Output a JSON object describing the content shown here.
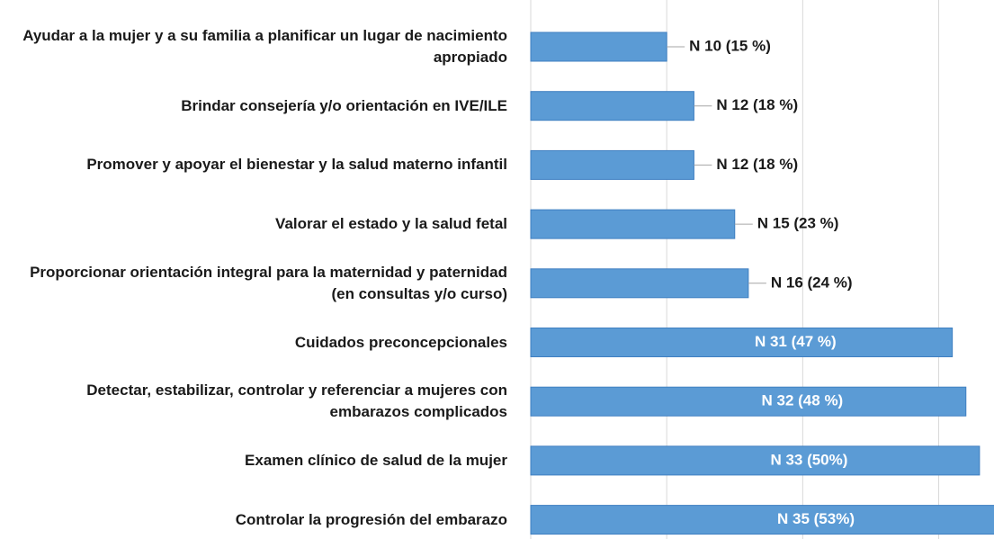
{
  "chart_data": {
    "type": "bar",
    "orientation": "horizontal",
    "categories": [
      "Ayudar a la mujer y a su familia a planificar un lugar de nacimiento apropiado",
      "Brindar consejería y/o orientación en IVE/ILE",
      "Promover y apoyar el bienestar y la salud materno infantil",
      "Valorar el estado y la salud fetal",
      "Proporcionar orientación integral para la maternidad y paternidad (en consultas y/o curso)",
      "Cuidados preconcepcionales",
      "Detectar, estabilizar, controlar y referenciar a mujeres con embarazos complicados",
      "Examen clínico de salud de la mujer",
      "Controlar la progresión del embarazo"
    ],
    "values": [
      10,
      12,
      12,
      15,
      16,
      31,
      32,
      33,
      35
    ],
    "value_labels": [
      "N 10 (15 %)",
      "N 12 (18 %)",
      "N 12 (18 %)",
      "N 15 (23 %)",
      "N 16 (24 %)",
      "N 31 (47 %)",
      "N 32 (48 %)",
      "N 33 (50%)",
      "N 35 (53%)"
    ],
    "color": "#5b9bd5",
    "xlim": [
      0,
      34
    ],
    "xticks": [
      0,
      10,
      20,
      30
    ],
    "grid": true
  }
}
